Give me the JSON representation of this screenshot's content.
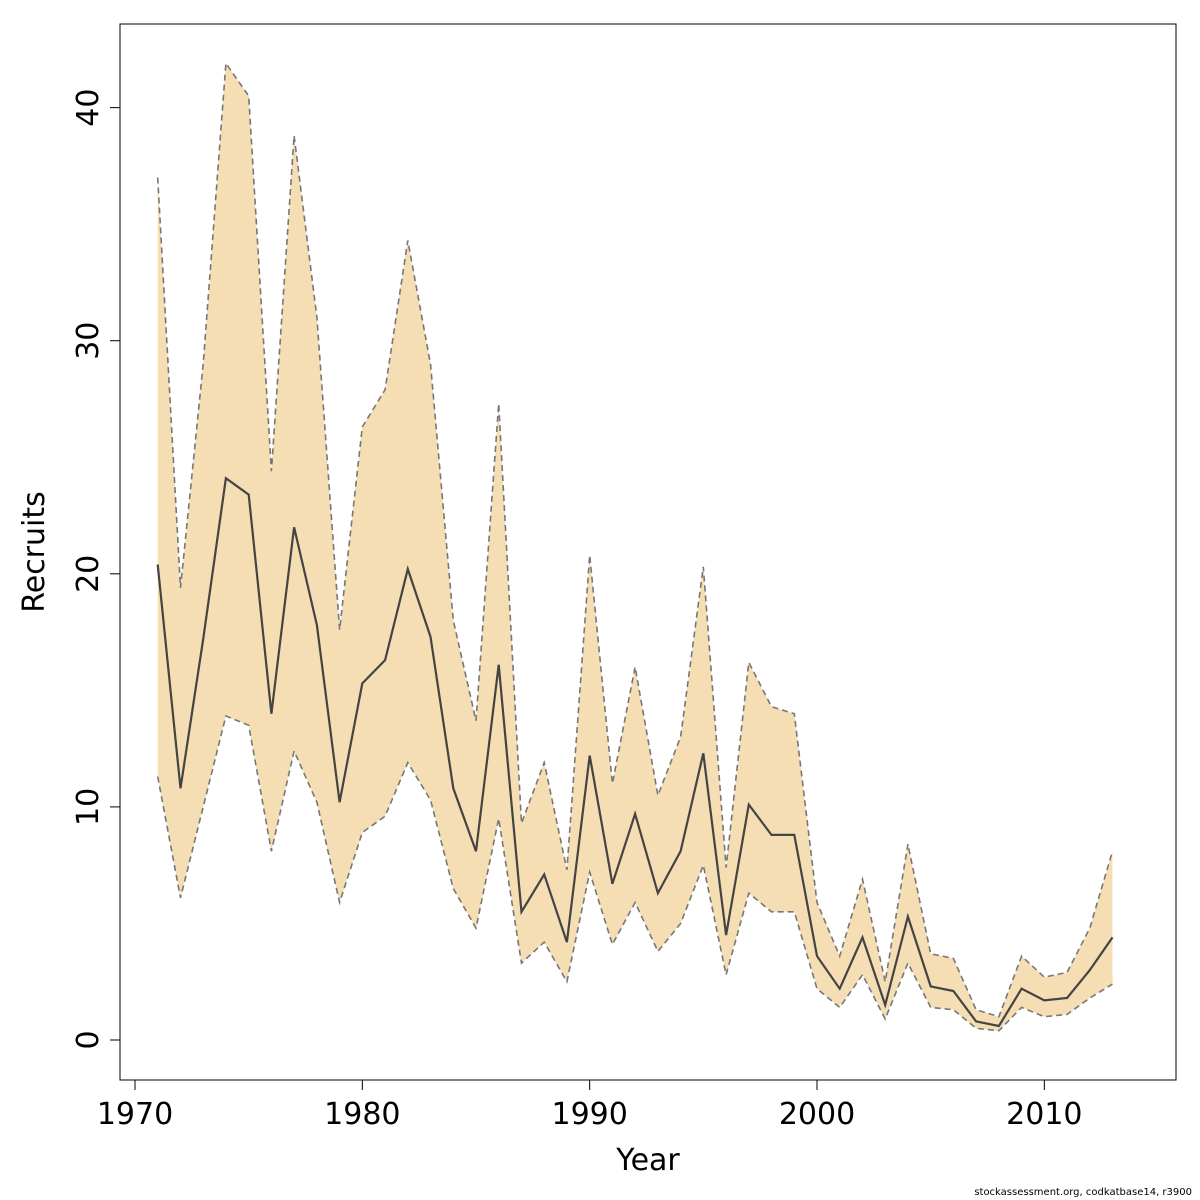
{
  "chart_data": {
    "type": "area",
    "title": "",
    "xlabel": "Year",
    "ylabel": "Recruits",
    "xlim": [
      1970,
      2015
    ],
    "ylim": [
      0,
      42
    ],
    "x_ticks": [
      1970,
      1980,
      1990,
      2000,
      2010
    ],
    "y_ticks": [
      0,
      10,
      20,
      30,
      40
    ],
    "grid": false,
    "colors": {
      "band": "#F5DEB3",
      "line": "#444444",
      "bound": "#777777"
    },
    "x": [
      1971,
      1972,
      1973,
      1974,
      1975,
      1976,
      1977,
      1978,
      1979,
      1980,
      1981,
      1982,
      1983,
      1984,
      1985,
      1986,
      1987,
      1988,
      1989,
      1990,
      1991,
      1992,
      1993,
      1994,
      1995,
      1996,
      1997,
      1998,
      1999,
      2000,
      2001,
      2002,
      2003,
      2004,
      2005,
      2006,
      2007,
      2008,
      2009,
      2010,
      2011,
      2012,
      2013
    ],
    "series": [
      {
        "values": [
          20.4,
          10.8,
          17.2,
          24.1,
          23.4,
          14.0,
          22.0,
          17.8,
          10.2,
          15.3,
          16.3,
          20.2,
          17.3,
          10.8,
          8.1,
          16.1,
          5.5,
          7.1,
          4.2,
          12.2,
          6.7,
          9.7,
          6.3,
          8.1,
          12.3,
          4.5,
          10.1,
          8.8,
          8.8,
          3.6,
          2.2,
          4.4,
          1.5,
          5.3,
          2.3,
          2.1,
          0.8,
          0.6,
          2.2,
          1.7,
          1.8,
          3.0,
          4.4
        ]
      },
      {
        "values": [
          37.0,
          19.4,
          29.0,
          41.9,
          40.5,
          24.4,
          38.8,
          31.0,
          17.6,
          26.3,
          27.9,
          34.3,
          29.0,
          18.0,
          13.7,
          27.3,
          9.3,
          11.9,
          7.3,
          20.8,
          11.0,
          16.0,
          10.5,
          13.0,
          20.3,
          7.4,
          16.2,
          14.3,
          14.0,
          5.9,
          3.6,
          6.9,
          2.5,
          8.4,
          3.7,
          3.5,
          1.3,
          1.0,
          3.6,
          2.7,
          2.9,
          4.8,
          8.1
        ]
      },
      {
        "values": [
          11.3,
          6.1,
          10.0,
          13.9,
          13.5,
          8.1,
          12.4,
          10.2,
          5.9,
          8.9,
          9.6,
          11.9,
          10.3,
          6.5,
          4.8,
          9.5,
          3.3,
          4.2,
          2.5,
          7.2,
          4.1,
          5.9,
          3.8,
          5.0,
          7.5,
          2.8,
          6.3,
          5.5,
          5.5,
          2.2,
          1.4,
          2.8,
          0.9,
          3.3,
          1.4,
          1.3,
          0.5,
          0.4,
          1.4,
          1.0,
          1.1,
          1.8,
          2.4
        ]
      }
    ]
  },
  "footer": "stockassessment.org, codkatbase14, r3900"
}
